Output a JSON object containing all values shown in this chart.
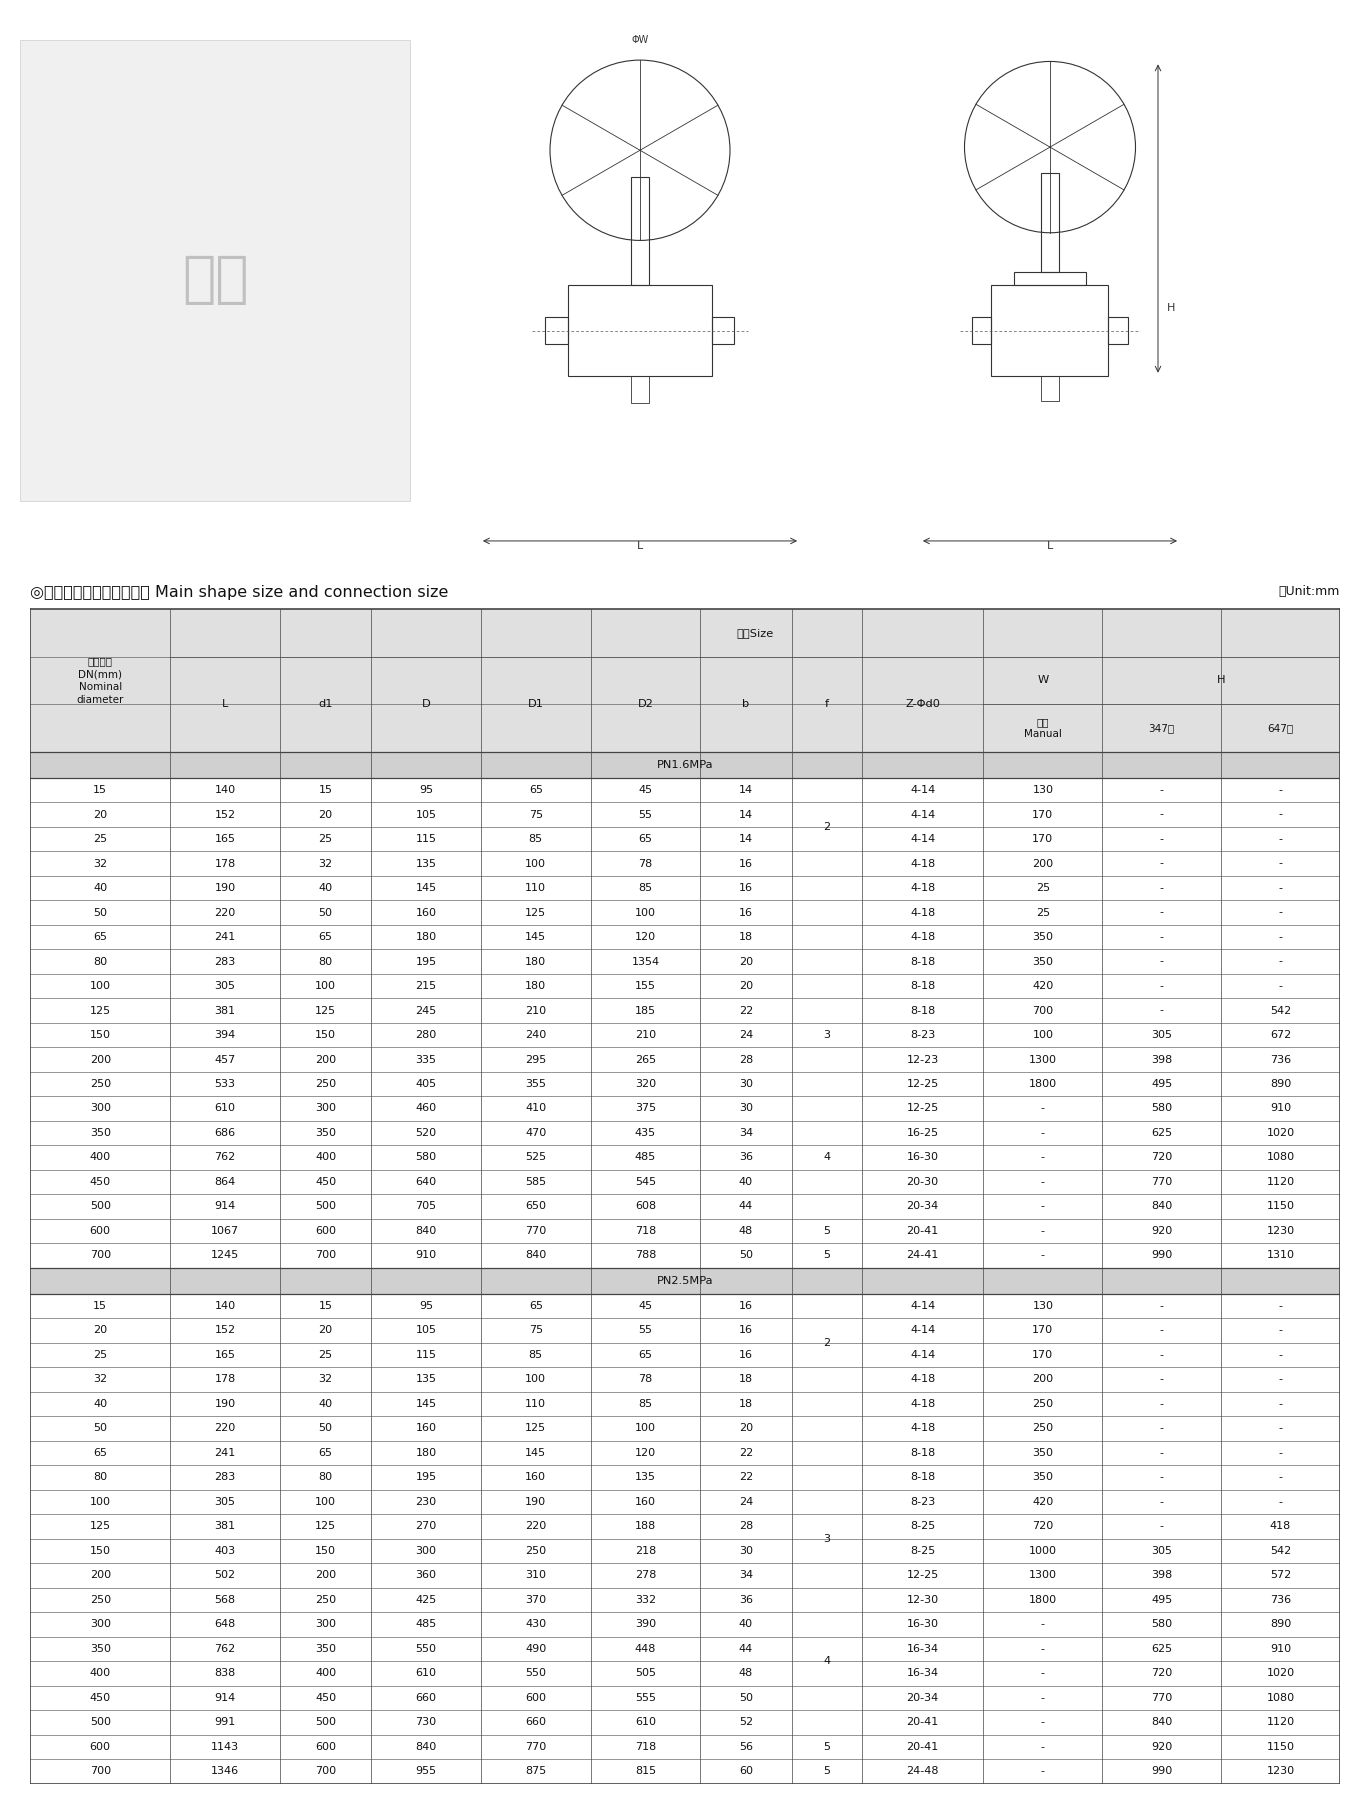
{
  "title": "◎主要外形尺寸和连接尺寸 Main shape size and connection size",
  "unit_label": "位Unit:mm",
  "pn16_label": "PN1.6MPa",
  "pn25_label": "PN2.5MPa",
  "bg_header": "#e0e0e0",
  "bg_pn_label": "#d0d0d0",
  "bg_white": "#ffffff",
  "line_color": "#444444",
  "pn16_data": [
    [
      "15",
      "140",
      "15",
      "95",
      "65",
      "45",
      "14",
      "2",
      "4-14",
      "130",
      "-",
      "-"
    ],
    [
      "20",
      "152",
      "20",
      "105",
      "75",
      "55",
      "14",
      "2",
      "4-14",
      "170",
      "-",
      "-"
    ],
    [
      "25",
      "165",
      "25",
      "115",
      "85",
      "65",
      "14",
      "2",
      "4-14",
      "170",
      "-",
      "-"
    ],
    [
      "32",
      "178",
      "32",
      "135",
      "100",
      "78",
      "16",
      "2",
      "4-18",
      "200",
      "-",
      "-"
    ],
    [
      "40",
      "190",
      "40",
      "145",
      "110",
      "85",
      "16",
      "",
      "4-18",
      "25",
      "-",
      "-"
    ],
    [
      "50",
      "220",
      "50",
      "160",
      "125",
      "100",
      "16",
      "",
      "4-18",
      "25",
      "-",
      "-"
    ],
    [
      "65",
      "241",
      "65",
      "180",
      "145",
      "120",
      "18",
      "",
      "4-18",
      "350",
      "-",
      "-"
    ],
    [
      "80",
      "283",
      "80",
      "195",
      "180",
      "1354",
      "20",
      "",
      "8-18",
      "350",
      "-",
      "-"
    ],
    [
      "100",
      "305",
      "100",
      "215",
      "180",
      "155",
      "20",
      "3",
      "8-18",
      "420",
      "-",
      "-"
    ],
    [
      "125",
      "381",
      "125",
      "245",
      "210",
      "185",
      "22",
      "",
      "8-18",
      "700",
      "-",
      "542"
    ],
    [
      "150",
      "394",
      "150",
      "280",
      "240",
      "210",
      "24",
      "",
      "8-23",
      "100",
      "305",
      "672"
    ],
    [
      "200",
      "457",
      "200",
      "335",
      "295",
      "265",
      "28",
      "",
      "12-23",
      "1300",
      "398",
      "736"
    ],
    [
      "250",
      "533",
      "250",
      "405",
      "355",
      "320",
      "30",
      "",
      "12-25",
      "1800",
      "495",
      "890"
    ],
    [
      "300",
      "610",
      "300",
      "460",
      "410",
      "375",
      "30",
      "",
      "12-25",
      "-",
      "580",
      "910"
    ],
    [
      "350",
      "686",
      "350",
      "520",
      "470",
      "435",
      "34",
      "",
      "16-25",
      "-",
      "625",
      "1020"
    ],
    [
      "400",
      "762",
      "400",
      "580",
      "525",
      "485",
      "36",
      "4",
      "16-30",
      "-",
      "720",
      "1080"
    ],
    [
      "450",
      "864",
      "450",
      "640",
      "585",
      "545",
      "40",
      "",
      "20-30",
      "-",
      "770",
      "1120"
    ],
    [
      "500",
      "914",
      "500",
      "705",
      "650",
      "608",
      "44",
      "",
      "20-34",
      "-",
      "840",
      "1150"
    ],
    [
      "600",
      "1067",
      "600",
      "840",
      "770",
      "718",
      "48",
      "5",
      "20-41",
      "-",
      "920",
      "1230"
    ],
    [
      "700",
      "1245",
      "700",
      "910",
      "840",
      "788",
      "50",
      "5",
      "24-41",
      "-",
      "990",
      "1310"
    ]
  ],
  "pn25_data": [
    [
      "15",
      "140",
      "15",
      "95",
      "65",
      "45",
      "16",
      "2",
      "4-14",
      "130",
      "-",
      "-"
    ],
    [
      "20",
      "152",
      "20",
      "105",
      "75",
      "55",
      "16",
      "2",
      "4-14",
      "170",
      "-",
      "-"
    ],
    [
      "25",
      "165",
      "25",
      "115",
      "85",
      "65",
      "16",
      "2",
      "4-14",
      "170",
      "-",
      "-"
    ],
    [
      "32",
      "178",
      "32",
      "135",
      "100",
      "78",
      "18",
      "2",
      "4-18",
      "200",
      "-",
      "-"
    ],
    [
      "40",
      "190",
      "40",
      "145",
      "110",
      "85",
      "18",
      "",
      "4-18",
      "250",
      "-",
      "-"
    ],
    [
      "50",
      "220",
      "50",
      "160",
      "125",
      "100",
      "20",
      "",
      "4-18",
      "250",
      "-",
      "-"
    ],
    [
      "65",
      "241",
      "65",
      "180",
      "145",
      "120",
      "22",
      "",
      "8-18",
      "350",
      "-",
      "-"
    ],
    [
      "80",
      "283",
      "80",
      "195",
      "160",
      "135",
      "22",
      "",
      "8-18",
      "350",
      "-",
      "-"
    ],
    [
      "100",
      "305",
      "100",
      "230",
      "190",
      "160",
      "24",
      "3",
      "8-23",
      "420",
      "-",
      "-"
    ],
    [
      "125",
      "381",
      "125",
      "270",
      "220",
      "188",
      "28",
      "",
      "8-25",
      "720",
      "-",
      "418"
    ],
    [
      "150",
      "403",
      "150",
      "300",
      "250",
      "218",
      "30",
      "",
      "8-25",
      "1000",
      "305",
      "542"
    ],
    [
      "200",
      "502",
      "200",
      "360",
      "310",
      "278",
      "34",
      "",
      "12-25",
      "1300",
      "398",
      "572"
    ],
    [
      "250",
      "568",
      "250",
      "425",
      "370",
      "332",
      "36",
      "",
      "12-30",
      "1800",
      "495",
      "736"
    ],
    [
      "300",
      "648",
      "300",
      "485",
      "430",
      "390",
      "40",
      "",
      "16-30",
      "-",
      "580",
      "890"
    ],
    [
      "350",
      "762",
      "350",
      "550",
      "490",
      "448",
      "44",
      "",
      "16-34",
      "-",
      "625",
      "910"
    ],
    [
      "400",
      "838",
      "400",
      "610",
      "550",
      "505",
      "48",
      "4",
      "16-34",
      "-",
      "720",
      "1020"
    ],
    [
      "450",
      "914",
      "450",
      "660",
      "600",
      "555",
      "50",
      "",
      "20-34",
      "-",
      "770",
      "1080"
    ],
    [
      "500",
      "991",
      "500",
      "730",
      "660",
      "610",
      "52",
      "",
      "20-41",
      "-",
      "840",
      "1120"
    ],
    [
      "600",
      "1143",
      "600",
      "840",
      "770",
      "718",
      "56",
      "5",
      "20-41",
      "-",
      "920",
      "1150"
    ],
    [
      "700",
      "1346",
      "700",
      "955",
      "875",
      "815",
      "60",
      "5",
      "24-48",
      "-",
      "990",
      "1230"
    ]
  ],
  "f_spans_16": [
    [
      0,
      3,
      "2"
    ],
    [
      4,
      7,
      ""
    ],
    [
      8,
      12,
      "3"
    ],
    [
      13,
      17,
      "4"
    ],
    [
      18,
      18,
      "5"
    ],
    [
      19,
      19,
      "5"
    ]
  ],
  "f_spans_25": [
    [
      0,
      3,
      "2"
    ],
    [
      4,
      7,
      ""
    ],
    [
      8,
      11,
      "3"
    ],
    [
      12,
      17,
      "4"
    ],
    [
      18,
      18,
      "5"
    ],
    [
      19,
      19,
      "5"
    ]
  ]
}
